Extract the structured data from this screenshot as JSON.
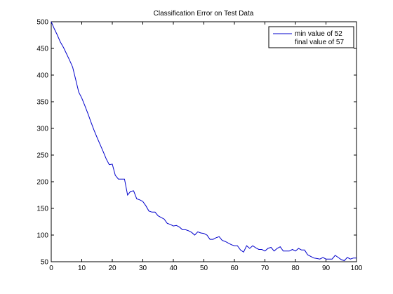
{
  "chart_data": {
    "type": "line",
    "title": "Classification Error on Test Data",
    "xlabel": "",
    "ylabel": "",
    "xlim": [
      0,
      100
    ],
    "ylim": [
      50,
      500
    ],
    "xticks": [
      0,
      10,
      20,
      30,
      40,
      50,
      60,
      70,
      80,
      90,
      100
    ],
    "yticks": [
      50,
      100,
      150,
      200,
      250,
      300,
      350,
      400,
      450,
      500
    ],
    "grid": false,
    "legend": {
      "placement": "top-right",
      "entries": [
        "min value of 52",
        "final value of 57"
      ]
    },
    "line_color": "#0000cc",
    "series": [
      {
        "x": [
          0,
          1,
          2,
          3,
          4,
          5,
          6,
          7,
          8,
          9,
          10,
          11,
          12,
          13,
          14,
          15,
          16,
          17,
          18,
          19,
          20,
          21,
          22,
          23,
          24,
          25,
          26,
          27,
          28,
          29,
          30,
          31,
          32,
          33,
          34,
          35,
          36,
          37,
          38,
          39,
          40,
          41,
          42,
          43,
          44,
          45,
          46,
          47,
          48,
          49,
          50,
          51,
          52,
          53,
          54,
          55,
          56,
          57,
          58,
          59,
          60,
          61,
          62,
          63,
          64,
          65,
          66,
          67,
          68,
          69,
          70,
          71,
          72,
          73,
          74,
          75,
          76,
          77,
          78,
          79,
          80,
          81,
          82,
          83,
          84,
          85,
          86,
          87,
          88,
          89,
          90,
          91,
          92,
          93,
          94,
          95,
          96,
          97,
          98,
          99,
          100
        ],
        "values": [
          500,
          487,
          475,
          462,
          452,
          440,
          428,
          415,
          392,
          368,
          357,
          343,
          328,
          312,
          297,
          283,
          270,
          257,
          243,
          232,
          233,
          212,
          205,
          205,
          205,
          175,
          182,
          183,
          168,
          166,
          163,
          155,
          145,
          143,
          143,
          136,
          133,
          130,
          122,
          120,
          117,
          118,
          115,
          110,
          110,
          108,
          105,
          100,
          106,
          104,
          103,
          100,
          92,
          92,
          95,
          97,
          90,
          88,
          85,
          82,
          80,
          80,
          72,
          68,
          80,
          75,
          80,
          76,
          73,
          73,
          70,
          75,
          77,
          70,
          75,
          78,
          70,
          70,
          70,
          73,
          70,
          75,
          72,
          72,
          63,
          60,
          57,
          56,
          55,
          58,
          55,
          55,
          55,
          62,
          58,
          54,
          52,
          58,
          55,
          57,
          57
        ]
      }
    ]
  }
}
